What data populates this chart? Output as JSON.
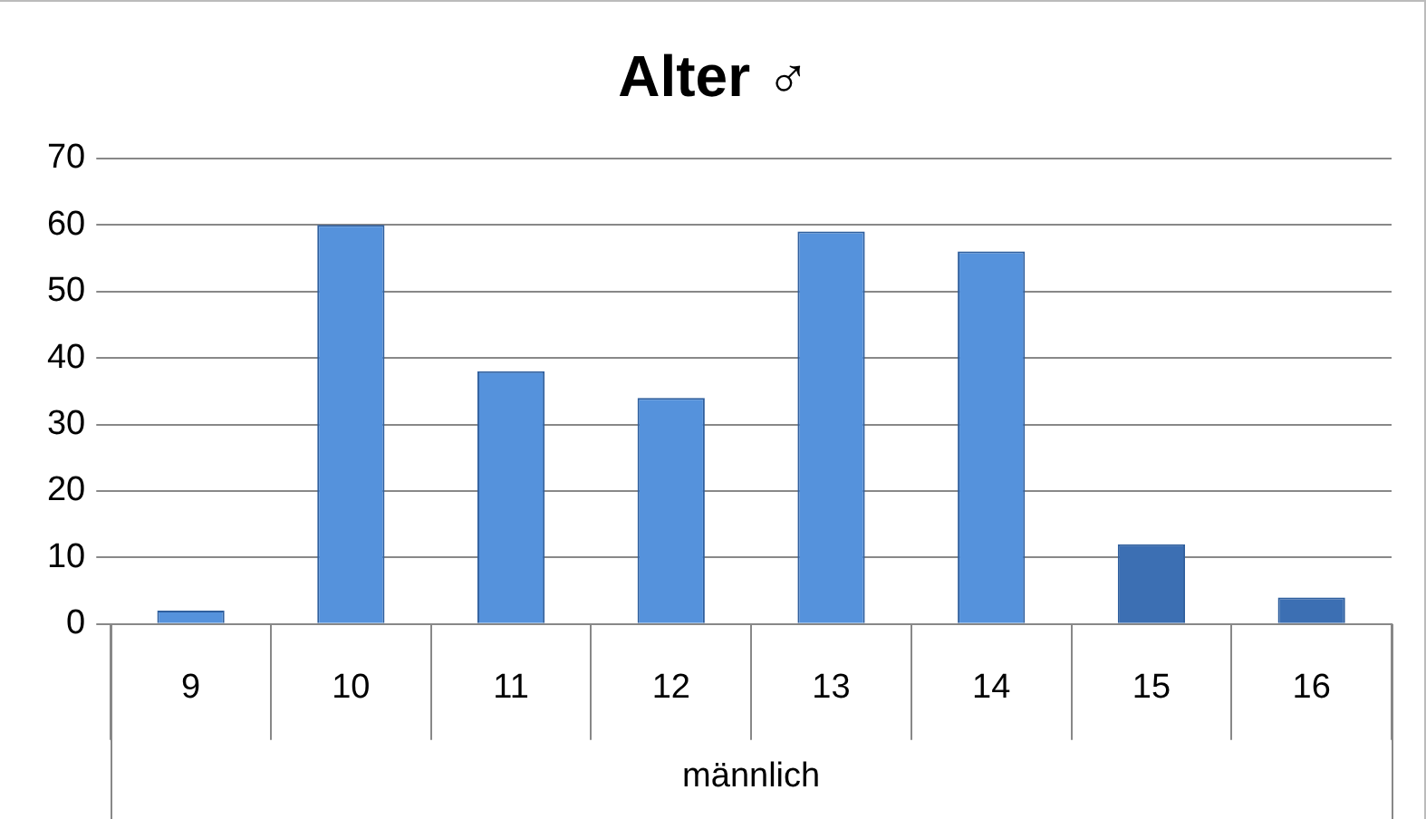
{
  "chart_data": {
    "type": "bar",
    "title": "Alter ♂",
    "xlabel": "männlich",
    "categories": [
      "9",
      "10",
      "11",
      "12",
      "13",
      "14",
      "15",
      "16"
    ],
    "values": [
      2,
      60,
      38,
      34,
      59,
      56,
      12,
      4
    ],
    "colors": [
      "#5592dc",
      "#5592dc",
      "#5592dc",
      "#5592dc",
      "#5592dc",
      "#5592dc",
      "#3c6fb3",
      "#3c6fb3"
    ],
    "ylim": [
      0,
      70
    ],
    "yticks": [
      0,
      10,
      20,
      30,
      40,
      50,
      60,
      70
    ],
    "grid": "y",
    "legend": false
  }
}
